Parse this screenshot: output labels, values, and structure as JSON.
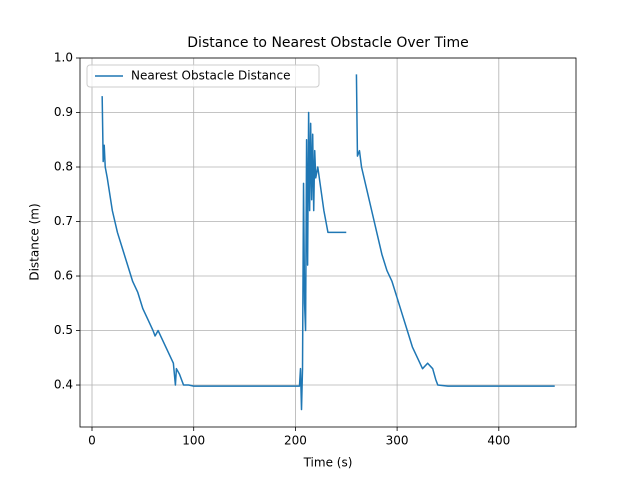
{
  "chart_data": {
    "type": "line",
    "title": "Distance to Nearest Obstacle Over Time",
    "xlabel": "Time (s)",
    "ylabel": "Distance (m)",
    "xlim": [
      -11.8,
      475.9
    ],
    "ylim": [
      0.323,
      1.0
    ],
    "xticks": [
      0,
      100,
      200,
      300,
      400
    ],
    "yticks": [
      0.4,
      0.5,
      0.6,
      0.7,
      0.8,
      0.9,
      {
        "value": 1.0,
        "label": "1.0"
      }
    ],
    "grid": true,
    "legend": "upper left",
    "x": [
      10,
      11,
      12,
      13,
      15,
      20,
      25,
      30,
      35,
      40,
      45,
      50,
      55,
      60,
      62,
      65,
      70,
      75,
      80,
      82,
      83,
      86,
      90,
      95,
      100,
      150,
      200,
      204,
      205,
      206,
      207,
      208,
      209,
      210,
      211,
      212,
      213,
      214,
      215,
      216,
      217,
      218,
      219,
      220,
      222,
      225,
      228,
      232,
      236,
      250,
      255,
      260,
      261,
      263,
      265,
      270,
      275,
      280,
      285,
      290,
      295,
      300,
      305,
      310,
      315,
      320,
      325,
      330,
      335,
      338,
      340,
      350,
      400,
      450,
      455
    ],
    "series": [
      {
        "name": "Nearest Obstacle Distance",
        "color": "#1f77b4",
        "values": [
          0.93,
          0.81,
          0.84,
          0.8,
          0.78,
          0.72,
          0.68,
          0.65,
          0.62,
          0.59,
          0.57,
          0.54,
          0.52,
          0.5,
          0.49,
          0.5,
          0.48,
          0.46,
          0.44,
          0.4,
          0.43,
          0.42,
          0.4,
          0.4,
          0.398,
          0.398,
          0.398,
          0.398,
          0.43,
          0.355,
          0.43,
          0.77,
          0.55,
          0.5,
          0.85,
          0.62,
          0.9,
          0.72,
          0.88,
          0.74,
          0.86,
          0.72,
          0.83,
          0.78,
          0.8,
          0.76,
          0.72,
          0.68,
          0.68,
          0.68,
          null,
          0.97,
          0.82,
          0.83,
          0.8,
          0.76,
          0.72,
          0.68,
          0.64,
          0.61,
          0.59,
          0.56,
          0.53,
          0.5,
          0.47,
          0.45,
          0.43,
          0.44,
          0.43,
          0.41,
          0.4,
          0.398,
          0.398,
          0.398,
          0.398
        ]
      }
    ]
  }
}
